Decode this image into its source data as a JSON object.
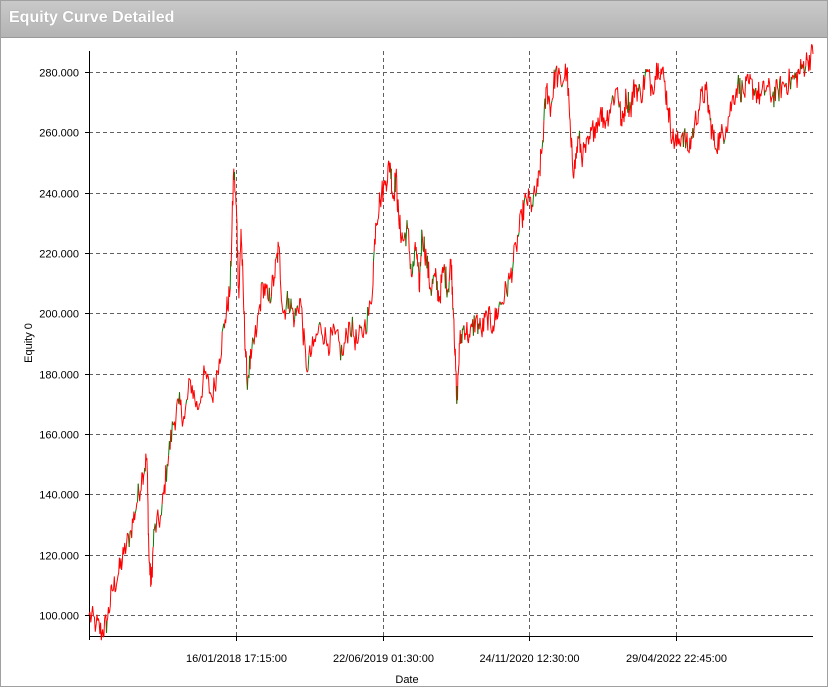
{
  "window": {
    "title": "Equity Curve Detailed"
  },
  "colors": {
    "down": "#ff0000",
    "up": "#008000",
    "grid": "#606060",
    "axis": "#000000"
  },
  "chart_data": {
    "type": "line",
    "title": "Equity Curve Detailed",
    "xlabel": "Date",
    "ylabel": "Equity 0",
    "ylim": [
      93000,
      287000
    ],
    "y_ticks": [
      100000,
      120000,
      140000,
      160000,
      180000,
      200000,
      220000,
      240000,
      260000,
      280000
    ],
    "y_tick_labels": [
      "100.000",
      "120.000",
      "140.000",
      "160.000",
      "180.000",
      "200.000",
      "220.000",
      "240.000",
      "260.000",
      "280.000"
    ],
    "x_ticks": [
      {
        "label": "16/01/2018 17:15:00",
        "position": 0.2027
      },
      {
        "label": "22/06/2019 01:30:00",
        "position": 0.4055
      },
      {
        "label": "24/11/2020 12:30:00",
        "position": 0.6082
      },
      {
        "label": "29/04/2022 22:45:00",
        "position": 0.811
      }
    ],
    "grid": true,
    "legend": "none",
    "series": [
      {
        "values": [
          [
            0.0,
            100000
          ],
          [
            0.01,
            97000
          ],
          [
            0.018,
            94000
          ],
          [
            0.025,
            98000
          ],
          [
            0.032,
            108000
          ],
          [
            0.04,
            113000
          ],
          [
            0.048,
            120000
          ],
          [
            0.058,
            128000
          ],
          [
            0.066,
            137000
          ],
          [
            0.074,
            147000
          ],
          [
            0.08,
            152000
          ],
          [
            0.083,
            118000
          ],
          [
            0.086,
            110000
          ],
          [
            0.09,
            128000
          ],
          [
            0.1,
            133000
          ],
          [
            0.108,
            150000
          ],
          [
            0.116,
            163000
          ],
          [
            0.124,
            170000
          ],
          [
            0.132,
            165000
          ],
          [
            0.14,
            178000
          ],
          [
            0.15,
            168000
          ],
          [
            0.16,
            180000
          ],
          [
            0.17,
            172000
          ],
          [
            0.18,
            185000
          ],
          [
            0.188,
            198000
          ],
          [
            0.195,
            208000
          ],
          [
            0.2,
            248000
          ],
          [
            0.204,
            232000
          ],
          [
            0.207,
            205000
          ],
          [
            0.21,
            228000
          ],
          [
            0.214,
            200000
          ],
          [
            0.218,
            178000
          ],
          [
            0.224,
            185000
          ],
          [
            0.232,
            195000
          ],
          [
            0.24,
            210000
          ],
          [
            0.248,
            204000
          ],
          [
            0.256,
            212000
          ],
          [
            0.262,
            222000
          ],
          [
            0.268,
            200000
          ],
          [
            0.276,
            205000
          ],
          [
            0.284,
            198000
          ],
          [
            0.292,
            205000
          ],
          [
            0.3,
            182000
          ],
          [
            0.31,
            189000
          ],
          [
            0.32,
            196000
          ],
          [
            0.33,
            190000
          ],
          [
            0.34,
            193000
          ],
          [
            0.35,
            186000
          ],
          [
            0.36,
            197000
          ],
          [
            0.37,
            190000
          ],
          [
            0.38,
            195000
          ],
          [
            0.39,
            203000
          ],
          [
            0.396,
            230000
          ],
          [
            0.402,
            238000
          ],
          [
            0.41,
            244000
          ],
          [
            0.416,
            250000
          ],
          [
            0.42,
            238000
          ],
          [
            0.424,
            246000
          ],
          [
            0.428,
            230000
          ],
          [
            0.434,
            224000
          ],
          [
            0.44,
            228000
          ],
          [
            0.446,
            212000
          ],
          [
            0.452,
            222000
          ],
          [
            0.456,
            208000
          ],
          [
            0.46,
            227000
          ],
          [
            0.466,
            218000
          ],
          [
            0.472,
            208000
          ],
          [
            0.478,
            212000
          ],
          [
            0.484,
            205000
          ],
          [
            0.49,
            215000
          ],
          [
            0.496,
            208000
          ],
          [
            0.5,
            218000
          ],
          [
            0.504,
            198000
          ],
          [
            0.508,
            170000
          ],
          [
            0.512,
            190000
          ],
          [
            0.518,
            196000
          ],
          [
            0.526,
            192000
          ],
          [
            0.534,
            198000
          ],
          [
            0.542,
            194000
          ],
          [
            0.55,
            199000
          ],
          [
            0.558,
            196000
          ],
          [
            0.566,
            202000
          ],
          [
            0.574,
            206000
          ],
          [
            0.582,
            212000
          ],
          [
            0.59,
            222000
          ],
          [
            0.598,
            232000
          ],
          [
            0.604,
            238000
          ],
          [
            0.612,
            236000
          ],
          [
            0.62,
            242000
          ],
          [
            0.626,
            255000
          ],
          [
            0.632,
            275000
          ],
          [
            0.638,
            268000
          ],
          [
            0.644,
            280000
          ],
          [
            0.652,
            276000
          ],
          [
            0.66,
            281000
          ],
          [
            0.666,
            255000
          ],
          [
            0.67,
            247000
          ],
          [
            0.676,
            258000
          ],
          [
            0.682,
            252000
          ],
          [
            0.69,
            256000
          ],
          [
            0.698,
            262000
          ],
          [
            0.706,
            266000
          ],
          [
            0.714,
            264000
          ],
          [
            0.722,
            270000
          ],
          [
            0.73,
            275000
          ],
          [
            0.736,
            262000
          ],
          [
            0.742,
            272000
          ],
          [
            0.748,
            268000
          ],
          [
            0.754,
            276000
          ],
          [
            0.762,
            272000
          ],
          [
            0.77,
            280000
          ],
          [
            0.778,
            275000
          ],
          [
            0.786,
            283000
          ],
          [
            0.794,
            278000
          ],
          [
            0.8,
            268000
          ],
          [
            0.806,
            258000
          ],
          [
            0.812,
            256000
          ],
          [
            0.82,
            260000
          ],
          [
            0.828,
            254000
          ],
          [
            0.836,
            262000
          ],
          [
            0.844,
            270000
          ],
          [
            0.852,
            274000
          ],
          [
            0.858,
            264000
          ],
          [
            0.864,
            256000
          ],
          [
            0.872,
            258000
          ],
          [
            0.88,
            262000
          ],
          [
            0.888,
            270000
          ],
          [
            0.896,
            276000
          ],
          [
            0.904,
            273000
          ],
          [
            0.912,
            276000
          ],
          [
            0.92,
            274000
          ],
          [
            0.928,
            272000
          ],
          [
            0.936,
            275000
          ],
          [
            0.944,
            272000
          ],
          [
            0.952,
            274000
          ],
          [
            0.96,
            276000
          ],
          [
            0.968,
            277000
          ],
          [
            0.976,
            278000
          ],
          [
            0.984,
            281000
          ],
          [
            0.992,
            284000
          ],
          [
            1.0,
            286000
          ]
        ]
      }
    ]
  }
}
